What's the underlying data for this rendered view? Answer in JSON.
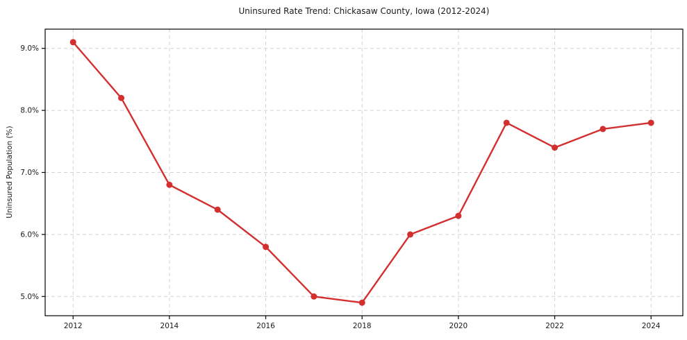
{
  "chart_data": {
    "type": "line",
    "title": "Uninsured Rate Trend: Chickasaw County, Iowa (2012-2024)",
    "xlabel": "",
    "ylabel": "Uninsured Population (%)",
    "x": [
      2012,
      2013,
      2014,
      2015,
      2016,
      2017,
      2018,
      2019,
      2020,
      2021,
      2022,
      2023,
      2024
    ],
    "values": [
      9.1,
      8.2,
      6.8,
      6.4,
      5.8,
      5.0,
      4.9,
      6.0,
      6.3,
      7.8,
      7.4,
      7.7,
      7.8
    ],
    "xticks": [
      2012,
      2014,
      2016,
      2018,
      2020,
      2022,
      2024
    ],
    "xtick_labels": [
      "2012",
      "2014",
      "2016",
      "2018",
      "2020",
      "2022",
      "2024"
    ],
    "yticks": [
      5.0,
      6.0,
      7.0,
      8.0,
      9.0
    ],
    "ytick_labels": [
      "5.0%",
      "6.0%",
      "7.0%",
      "8.0%",
      "9.0%"
    ],
    "xlim": [
      2011.42,
      2024.66
    ],
    "ylim": [
      4.69,
      9.31
    ],
    "grid": true,
    "grid_style": "dashed",
    "legend": false,
    "line_color": "#d32f2f",
    "marker": "circle",
    "grid_color": "#d2d2d2",
    "axis_color": "#000000",
    "text_color": "#1a1a1a",
    "background": "#ffffff"
  }
}
